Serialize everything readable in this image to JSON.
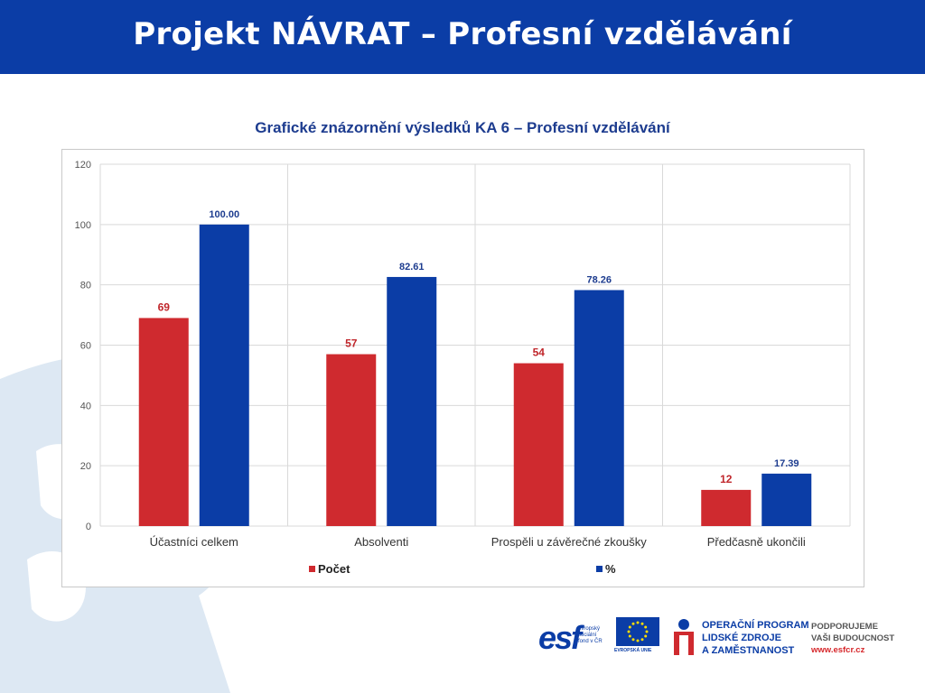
{
  "header": {
    "title": "Projekt NÁVRAT – Profesní vzdělávání"
  },
  "colors": {
    "header_bg": "#0b3da6",
    "pocet": "#cf2a2f",
    "percent": "#0b3da6",
    "pocet_label": "#c0262b",
    "percent_label": "#1d3c8f",
    "bg_shape": "#dde8f3"
  },
  "chart_data": {
    "type": "bar",
    "title": "Grafické znázornění výsledků KA 6 – Profesní vzdělávání",
    "categories": [
      "Účastníci celkem",
      "Absolventi",
      "Prospěli u závěrečné zkoušky",
      "Předčasně ukončili"
    ],
    "series": [
      {
        "name": "Počet",
        "values": [
          69,
          57,
          54,
          12
        ],
        "labels": [
          "69",
          "57",
          "54",
          "12"
        ]
      },
      {
        "name": "%",
        "values": [
          100.0,
          82.61,
          78.26,
          17.39
        ],
        "labels": [
          "100.00",
          "82.61",
          "78.26",
          "17.39"
        ]
      }
    ],
    "ylim": [
      0,
      120
    ],
    "yticks": [
      "0",
      "20",
      "40",
      "60",
      "80",
      "100",
      "120"
    ],
    "grid": true,
    "legend_position": "bottom"
  },
  "footer": {
    "esf_logo": "esf",
    "esf_caption": [
      "evropský",
      "sociální",
      "fond v ČR"
    ],
    "eu_caption": "EVROPSKÁ UNIE",
    "op_lines": [
      "OPERAČNÍ PROGRAM",
      "LIDSKÉ ZDROJE",
      "A ZAMĚSTNANOST"
    ],
    "support_lines": [
      "PODPORUJEME",
      "VAŠI BUDOUCNOST"
    ],
    "support_url": "www.esfcr.cz"
  }
}
